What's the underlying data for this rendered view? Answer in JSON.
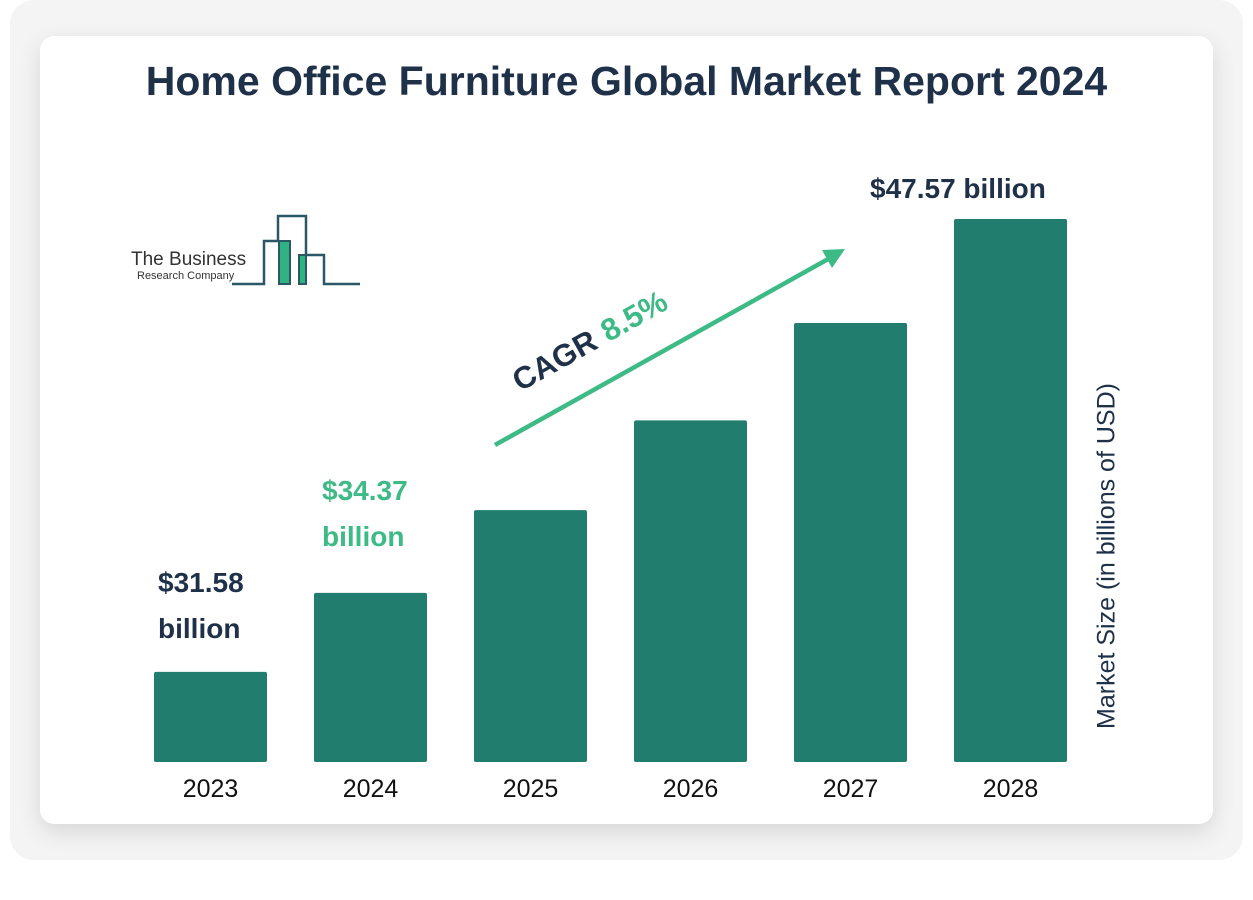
{
  "chart_data": {
    "type": "bar",
    "title": "Home Office Furniture Global Market Report 2024",
    "categories": [
      "2023",
      "2024",
      "2025",
      "2026",
      "2027",
      "2028"
    ],
    "values": [
      31.58,
      34.37,
      37.29,
      40.46,
      43.9,
      47.57
    ],
    "data_labels": {
      "2023": "$31.58 billion",
      "2024": "$34.37 billion",
      "2028": "$47.57 billion"
    },
    "xlabel": "",
    "ylabel": "Market Size (in billions of USD)",
    "ylim": [
      28.4,
      47.57
    ],
    "grid": false,
    "annotation": {
      "label": "CAGR",
      "value": "8.5%"
    }
  },
  "labels": {
    "l2023_a": "$31.58",
    "l2023_b": "billion",
    "l2024_a": "$34.37",
    "l2024_b": "billion",
    "l2028": "$47.57 billion"
  },
  "logo": {
    "line1": "The Business",
    "line2": "Research Company"
  },
  "colors": {
    "bar": "#217d6d",
    "accent": "#3dba85",
    "text": "#1f3049"
  }
}
